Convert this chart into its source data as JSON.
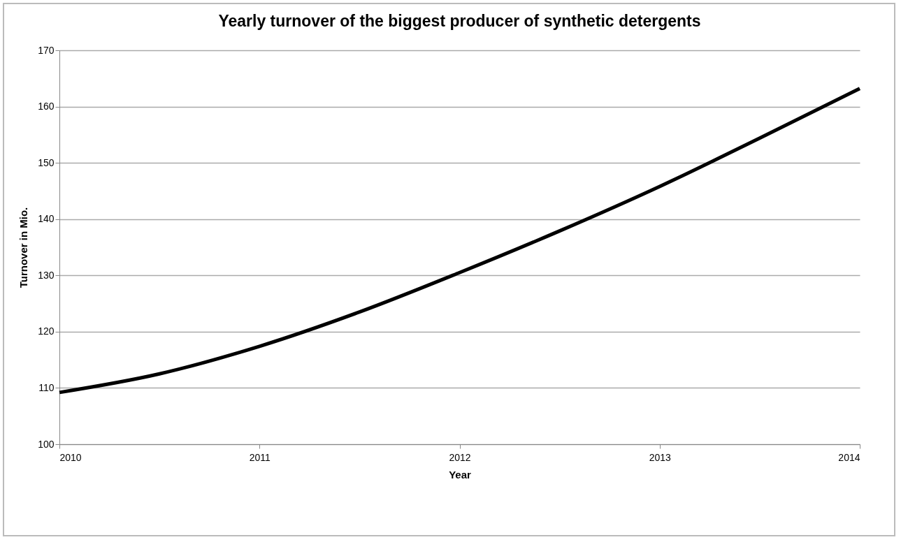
{
  "chart_data": {
    "type": "line",
    "title": "Yearly turnover of the biggest producer of synthetic detergents",
    "xlabel": "Year",
    "ylabel": "Turnover in Mio.",
    "x": [
      2010,
      2010.5,
      2011,
      2011.5,
      2012,
      2012.5,
      2013,
      2013.5,
      2014
    ],
    "series": [
      {
        "color": "#000000",
        "values": [
          109.2,
          112.5,
          117.4,
          123.5,
          130.5,
          137.9,
          145.8,
          154.4,
          163.2
        ]
      }
    ],
    "xlim": [
      2010,
      2014
    ],
    "xticks": [
      2010,
      2011,
      2012,
      2013,
      2014
    ],
    "ylim": [
      100,
      170
    ],
    "yticks": [
      100,
      110,
      120,
      130,
      140,
      150,
      160,
      170
    ],
    "grid": "y",
    "marker": "none",
    "line_style": "solid"
  }
}
